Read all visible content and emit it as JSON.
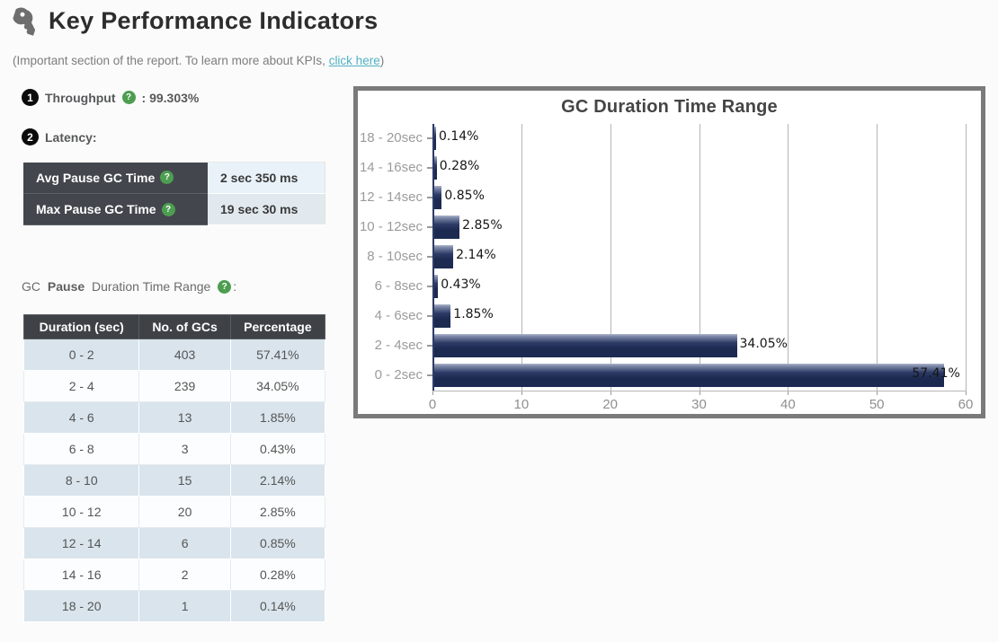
{
  "page": {
    "title": "Key Performance Indicators",
    "subtitle_prefix": "(Important section of the report. To learn more about KPIs, ",
    "subtitle_link": "click here",
    "subtitle_suffix": ")"
  },
  "kpi": {
    "throughput": {
      "badge": "1",
      "label": "Throughput",
      "value": ": 99.303%"
    },
    "latency": {
      "badge": "2",
      "label": "Latency:"
    }
  },
  "latency_table": {
    "rows": [
      {
        "label": "Avg Pause GC Time",
        "value": "2 sec 350 ms"
      },
      {
        "label": "Max Pause GC Time",
        "value": "19 sec 30 ms"
      }
    ]
  },
  "gc_pause_label": {
    "prefix": "GC ",
    "bold": "Pause",
    "suffix": " Duration Time Range",
    "colon": ":"
  },
  "duration_table": {
    "headers": [
      "Duration (sec)",
      "No. of GCs",
      "Percentage"
    ],
    "rows": [
      [
        "0 - 2",
        "403",
        "57.41%"
      ],
      [
        "2 - 4",
        "239",
        "34.05%"
      ],
      [
        "4 - 6",
        "13",
        "1.85%"
      ],
      [
        "6 - 8",
        "3",
        "0.43%"
      ],
      [
        "8 - 10",
        "15",
        "2.14%"
      ],
      [
        "10 - 12",
        "20",
        "2.85%"
      ],
      [
        "12 - 14",
        "6",
        "0.85%"
      ],
      [
        "14 - 16",
        "2",
        "0.28%"
      ],
      [
        "18 - 20",
        "1",
        "0.14%"
      ]
    ]
  },
  "chart_data": {
    "type": "bar",
    "orientation": "horizontal",
    "title": "GC Duration Time Range",
    "categories": [
      "18 - 20sec",
      "14 - 16sec",
      "12 - 14sec",
      "10 - 12sec",
      "8 - 10sec",
      "6 - 8sec",
      "4 - 6sec",
      "2 - 4sec",
      "0 - 2sec"
    ],
    "values": [
      0.14,
      0.28,
      0.85,
      2.85,
      2.14,
      0.43,
      1.85,
      34.05,
      57.41
    ],
    "labels": [
      "0.14%",
      "0.28%",
      "0.85%",
      "2.85%",
      "2.14%",
      "0.43%",
      "1.85%",
      "34.05%",
      "57.41%"
    ],
    "xlim": [
      0,
      60
    ],
    "xticks": [
      0,
      10,
      20,
      30,
      40,
      50,
      60
    ],
    "xlabel": "",
    "ylabel": "",
    "grid": true,
    "legend": false,
    "bar_color": "#1c2a52"
  },
  "colors": {
    "bar_navy": "#1c2a52",
    "help_green": "#4d9e50",
    "link_teal": "#51b2c4",
    "table_header_dark": "#3e4247",
    "stripe_blue": "#d9e4ec"
  }
}
